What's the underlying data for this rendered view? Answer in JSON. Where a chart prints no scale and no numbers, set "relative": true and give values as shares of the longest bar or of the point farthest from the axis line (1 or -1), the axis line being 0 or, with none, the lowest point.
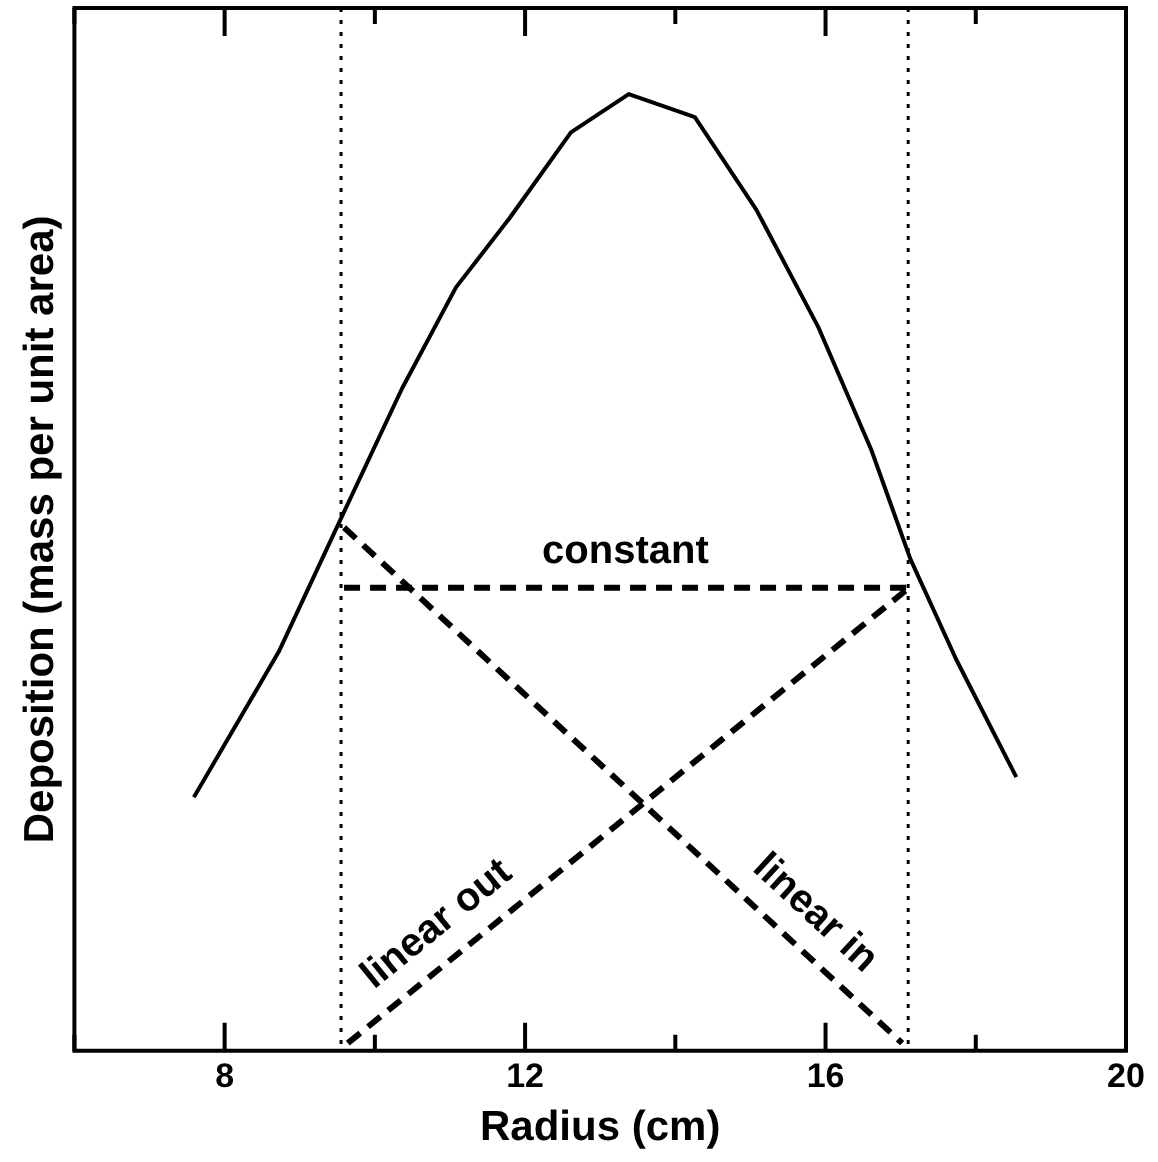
{
  "chart_data": {
    "type": "line",
    "xlabel": "Radius (cm)",
    "ylabel": "Deposition (mass per unit area)",
    "relative": true,
    "xlim": [
      6,
      20
    ],
    "xticks": [
      {
        "value": 6,
        "label": null
      },
      8,
      {
        "value": 10,
        "label": null
      },
      12,
      {
        "value": 14,
        "label": null
      },
      16,
      {
        "value": 18,
        "label": null
      },
      20
    ],
    "grid": false,
    "legend": false,
    "marker": "none",
    "series": [
      {
        "color": "#000000",
        "line_style": "solid",
        "x": [
          7.59,
          8.72,
          9.54,
          10.36,
          11.08,
          11.79,
          12.61,
          13.38,
          14.26,
          15.08,
          15.9,
          16.61,
          17.13,
          17.74,
          18.54
        ],
        "values": [
          0.265,
          0.417,
          0.555,
          0.692,
          0.798,
          0.87,
          0.96,
          1,
          0.976,
          0.879,
          0.757,
          0.628,
          0.514,
          0.409,
          0.286
        ]
      },
      {
        "name": "constant",
        "color": "#000000",
        "line_style": "dashed",
        "x": [
          9.59,
          17.08
        ],
        "values": [
          0.484,
          0.484
        ]
      },
      {
        "name": "linear in",
        "color": "#000000",
        "line_style": "dashed",
        "x": [
          9.59,
          17.02
        ],
        "values": [
          0.547,
          0.008
        ]
      },
      {
        "name": "linear out",
        "color": "#000000",
        "line_style": "dashed",
        "x": [
          9.64,
          17.08
        ],
        "values": [
          0.008,
          0.482
        ]
      }
    ],
    "ref_lines": [
      {
        "axis": "x",
        "value": 9.55,
        "line_style": "dotted",
        "color": "#000000"
      },
      {
        "axis": "x",
        "value": 17.1,
        "line_style": "dotted",
        "color": "#000000"
      }
    ]
  }
}
